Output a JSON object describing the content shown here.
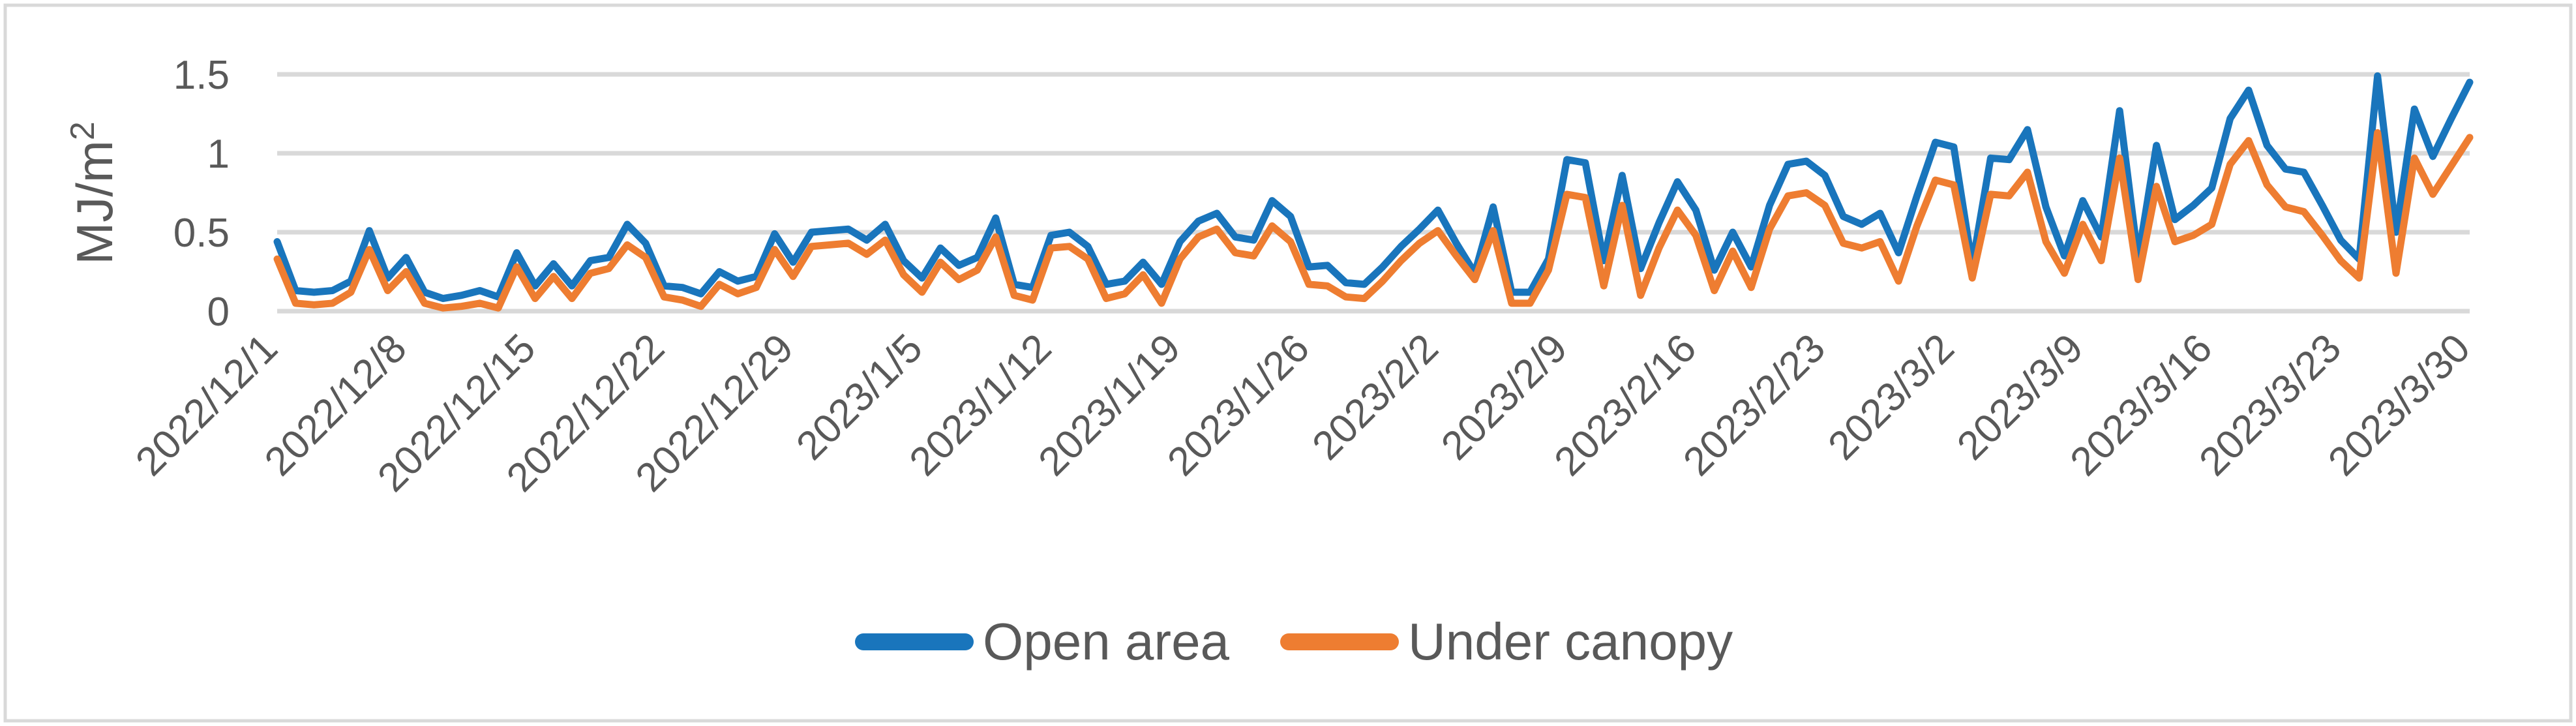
{
  "chart_data": {
    "type": "line",
    "title": "",
    "xlabel": "",
    "ylabel": "MJ/m²",
    "ylim": [
      0,
      1.5
    ],
    "yticks": [
      0,
      0.5,
      1,
      1.5
    ],
    "ytick_labels": [
      "0",
      "0.5",
      "1",
      "1.5"
    ],
    "grid": true,
    "legend_position": "bottom",
    "xtick_labels": [
      "2022/12/1",
      "2022/12/8",
      "2022/12/15",
      "2022/12/22",
      "2022/12/29",
      "2023/1/5",
      "2023/1/12",
      "2023/1/19",
      "2023/1/26",
      "2023/2/2",
      "2023/2/9",
      "2023/2/16",
      "2023/2/23",
      "2023/3/2",
      "2023/3/9",
      "2023/3/16",
      "2023/3/23",
      "2023/3/30"
    ],
    "x": [
      "2022/12/1",
      "2022/12/2",
      "2022/12/3",
      "2022/12/4",
      "2022/12/5",
      "2022/12/6",
      "2022/12/7",
      "2022/12/8",
      "2022/12/9",
      "2022/12/10",
      "2022/12/11",
      "2022/12/12",
      "2022/12/13",
      "2022/12/14",
      "2022/12/15",
      "2022/12/16",
      "2022/12/17",
      "2022/12/18",
      "2022/12/19",
      "2022/12/20",
      "2022/12/21",
      "2022/12/22",
      "2022/12/23",
      "2022/12/24",
      "2022/12/25",
      "2022/12/26",
      "2022/12/27",
      "2022/12/28",
      "2022/12/29",
      "2022/12/30",
      "2022/12/31",
      "2023/1/1",
      "2023/1/2",
      "2023/1/3",
      "2023/1/4",
      "2023/1/5",
      "2023/1/6",
      "2023/1/7",
      "2023/1/8",
      "2023/1/9",
      "2023/1/10",
      "2023/1/11",
      "2023/1/12",
      "2023/1/13",
      "2023/1/14",
      "2023/1/15",
      "2023/1/16",
      "2023/1/17",
      "2023/1/18",
      "2023/1/19",
      "2023/1/20",
      "2023/1/21",
      "2023/1/22",
      "2023/1/23",
      "2023/1/24",
      "2023/1/25",
      "2023/1/26",
      "2023/1/27",
      "2023/1/28",
      "2023/1/29",
      "2023/1/30",
      "2023/1/31",
      "2023/2/1",
      "2023/2/2",
      "2023/2/3",
      "2023/2/4",
      "2023/2/5",
      "2023/2/6",
      "2023/2/7",
      "2023/2/8",
      "2023/2/9",
      "2023/2/10",
      "2023/2/11",
      "2023/2/12",
      "2023/2/13",
      "2023/2/14",
      "2023/2/15",
      "2023/2/16",
      "2023/2/17",
      "2023/2/18",
      "2023/2/19",
      "2023/2/20",
      "2023/2/21",
      "2023/2/22",
      "2023/2/23",
      "2023/2/24",
      "2023/2/25",
      "2023/2/26",
      "2023/2/27",
      "2023/2/28",
      "2023/3/1",
      "2023/3/2",
      "2023/3/3",
      "2023/3/4",
      "2023/3/5",
      "2023/3/6",
      "2023/3/7",
      "2023/3/8",
      "2023/3/9",
      "2023/3/10",
      "2023/3/11",
      "2023/3/12",
      "2023/3/13",
      "2023/3/14",
      "2023/3/15",
      "2023/3/16",
      "2023/3/17",
      "2023/3/18",
      "2023/3/19",
      "2023/3/20",
      "2023/3/21",
      "2023/3/22",
      "2023/3/23",
      "2023/3/24",
      "2023/3/25",
      "2023/3/26",
      "2023/3/27",
      "2023/3/28",
      "2023/3/29",
      "2023/3/30"
    ],
    "series": [
      {
        "name": "Open area",
        "color": "#1975BC",
        "values": [
          0.44,
          0.13,
          0.12,
          0.13,
          0.19,
          0.51,
          0.21,
          0.34,
          0.12,
          0.08,
          0.1,
          0.13,
          0.09,
          0.37,
          0.16,
          0.3,
          0.16,
          0.32,
          0.34,
          0.55,
          0.43,
          0.16,
          0.15,
          0.11,
          0.25,
          0.19,
          0.22,
          0.49,
          0.31,
          0.5,
          0.51,
          0.52,
          0.45,
          0.55,
          0.32,
          0.21,
          0.4,
          0.29,
          0.34,
          0.59,
          0.17,
          0.15,
          0.48,
          0.5,
          0.41,
          0.17,
          0.19,
          0.31,
          0.17,
          0.44,
          0.57,
          0.62,
          0.47,
          0.45,
          0.7,
          0.6,
          0.28,
          0.29,
          0.18,
          0.17,
          0.28,
          0.41,
          0.52,
          0.64,
          0.43,
          0.24,
          0.66,
          0.12,
          0.12,
          0.33,
          0.96,
          0.94,
          0.32,
          0.86,
          0.27,
          0.56,
          0.82,
          0.64,
          0.26,
          0.5,
          0.28,
          0.67,
          0.93,
          0.95,
          0.86,
          0.6,
          0.55,
          0.62,
          0.37,
          0.73,
          1.07,
          1.04,
          0.29,
          0.97,
          0.96,
          1.15,
          0.66,
          0.35,
          0.7,
          0.47,
          1.27,
          0.33,
          1.05,
          0.58,
          0.67,
          0.78,
          1.22,
          1.4,
          1.05,
          0.9,
          0.88,
          0.67,
          0.45,
          0.33,
          1.49,
          0.5,
          1.28,
          0.98,
          1.22,
          1.45
        ]
      },
      {
        "name": "Under canopy",
        "color": "#EE7D31",
        "values": [
          0.33,
          0.05,
          0.04,
          0.05,
          0.12,
          0.39,
          0.13,
          0.25,
          0.05,
          0.02,
          0.03,
          0.05,
          0.02,
          0.28,
          0.08,
          0.22,
          0.08,
          0.24,
          0.27,
          0.42,
          0.34,
          0.09,
          0.07,
          0.03,
          0.17,
          0.11,
          0.15,
          0.39,
          0.22,
          0.41,
          0.42,
          0.43,
          0.36,
          0.45,
          0.23,
          0.12,
          0.31,
          0.2,
          0.26,
          0.47,
          0.1,
          0.07,
          0.4,
          0.41,
          0.33,
          0.08,
          0.11,
          0.23,
          0.05,
          0.33,
          0.47,
          0.52,
          0.37,
          0.35,
          0.54,
          0.44,
          0.17,
          0.16,
          0.09,
          0.08,
          0.19,
          0.32,
          0.43,
          0.51,
          0.35,
          0.2,
          0.51,
          0.05,
          0.05,
          0.26,
          0.74,
          0.72,
          0.16,
          0.67,
          0.1,
          0.4,
          0.64,
          0.48,
          0.13,
          0.38,
          0.15,
          0.52,
          0.73,
          0.75,
          0.67,
          0.43,
          0.4,
          0.44,
          0.19,
          0.54,
          0.83,
          0.8,
          0.21,
          0.74,
          0.73,
          0.88,
          0.44,
          0.24,
          0.55,
          0.32,
          0.97,
          0.2,
          0.79,
          0.44,
          0.48,
          0.55,
          0.93,
          1.08,
          0.8,
          0.66,
          0.63,
          0.48,
          0.32,
          0.21,
          1.13,
          0.24,
          0.97,
          0.74,
          0.92,
          1.1
        ]
      }
    ],
    "colors": {
      "gridline": "#D9D9D9",
      "border": "#D9D9D9",
      "axis_text": "#595959",
      "background": "#FFFFFF"
    }
  }
}
